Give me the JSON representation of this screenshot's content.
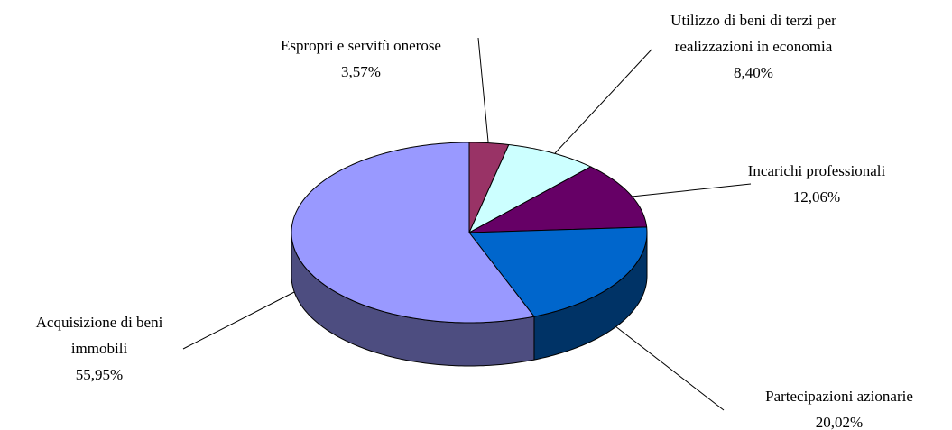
{
  "chart_data": {
    "type": "pie3d",
    "categories": [
      "Espropri e servitù onerose",
      "Utilizzo di beni di terzi per realizzazioni in economia",
      "Incarichi professionali",
      "Partecipazioni azionarie",
      "Acquisizione di beni immobili"
    ],
    "values": [
      3.57,
      8.4,
      12.06,
      20.02,
      55.95
    ],
    "value_labels": [
      "3,57%",
      "8,40%",
      "12,06%",
      "20,02%",
      "55,95%"
    ],
    "colors": [
      "#993366",
      "#ccffff",
      "#660066",
      "#0066cc",
      "#9999ff"
    ]
  }
}
